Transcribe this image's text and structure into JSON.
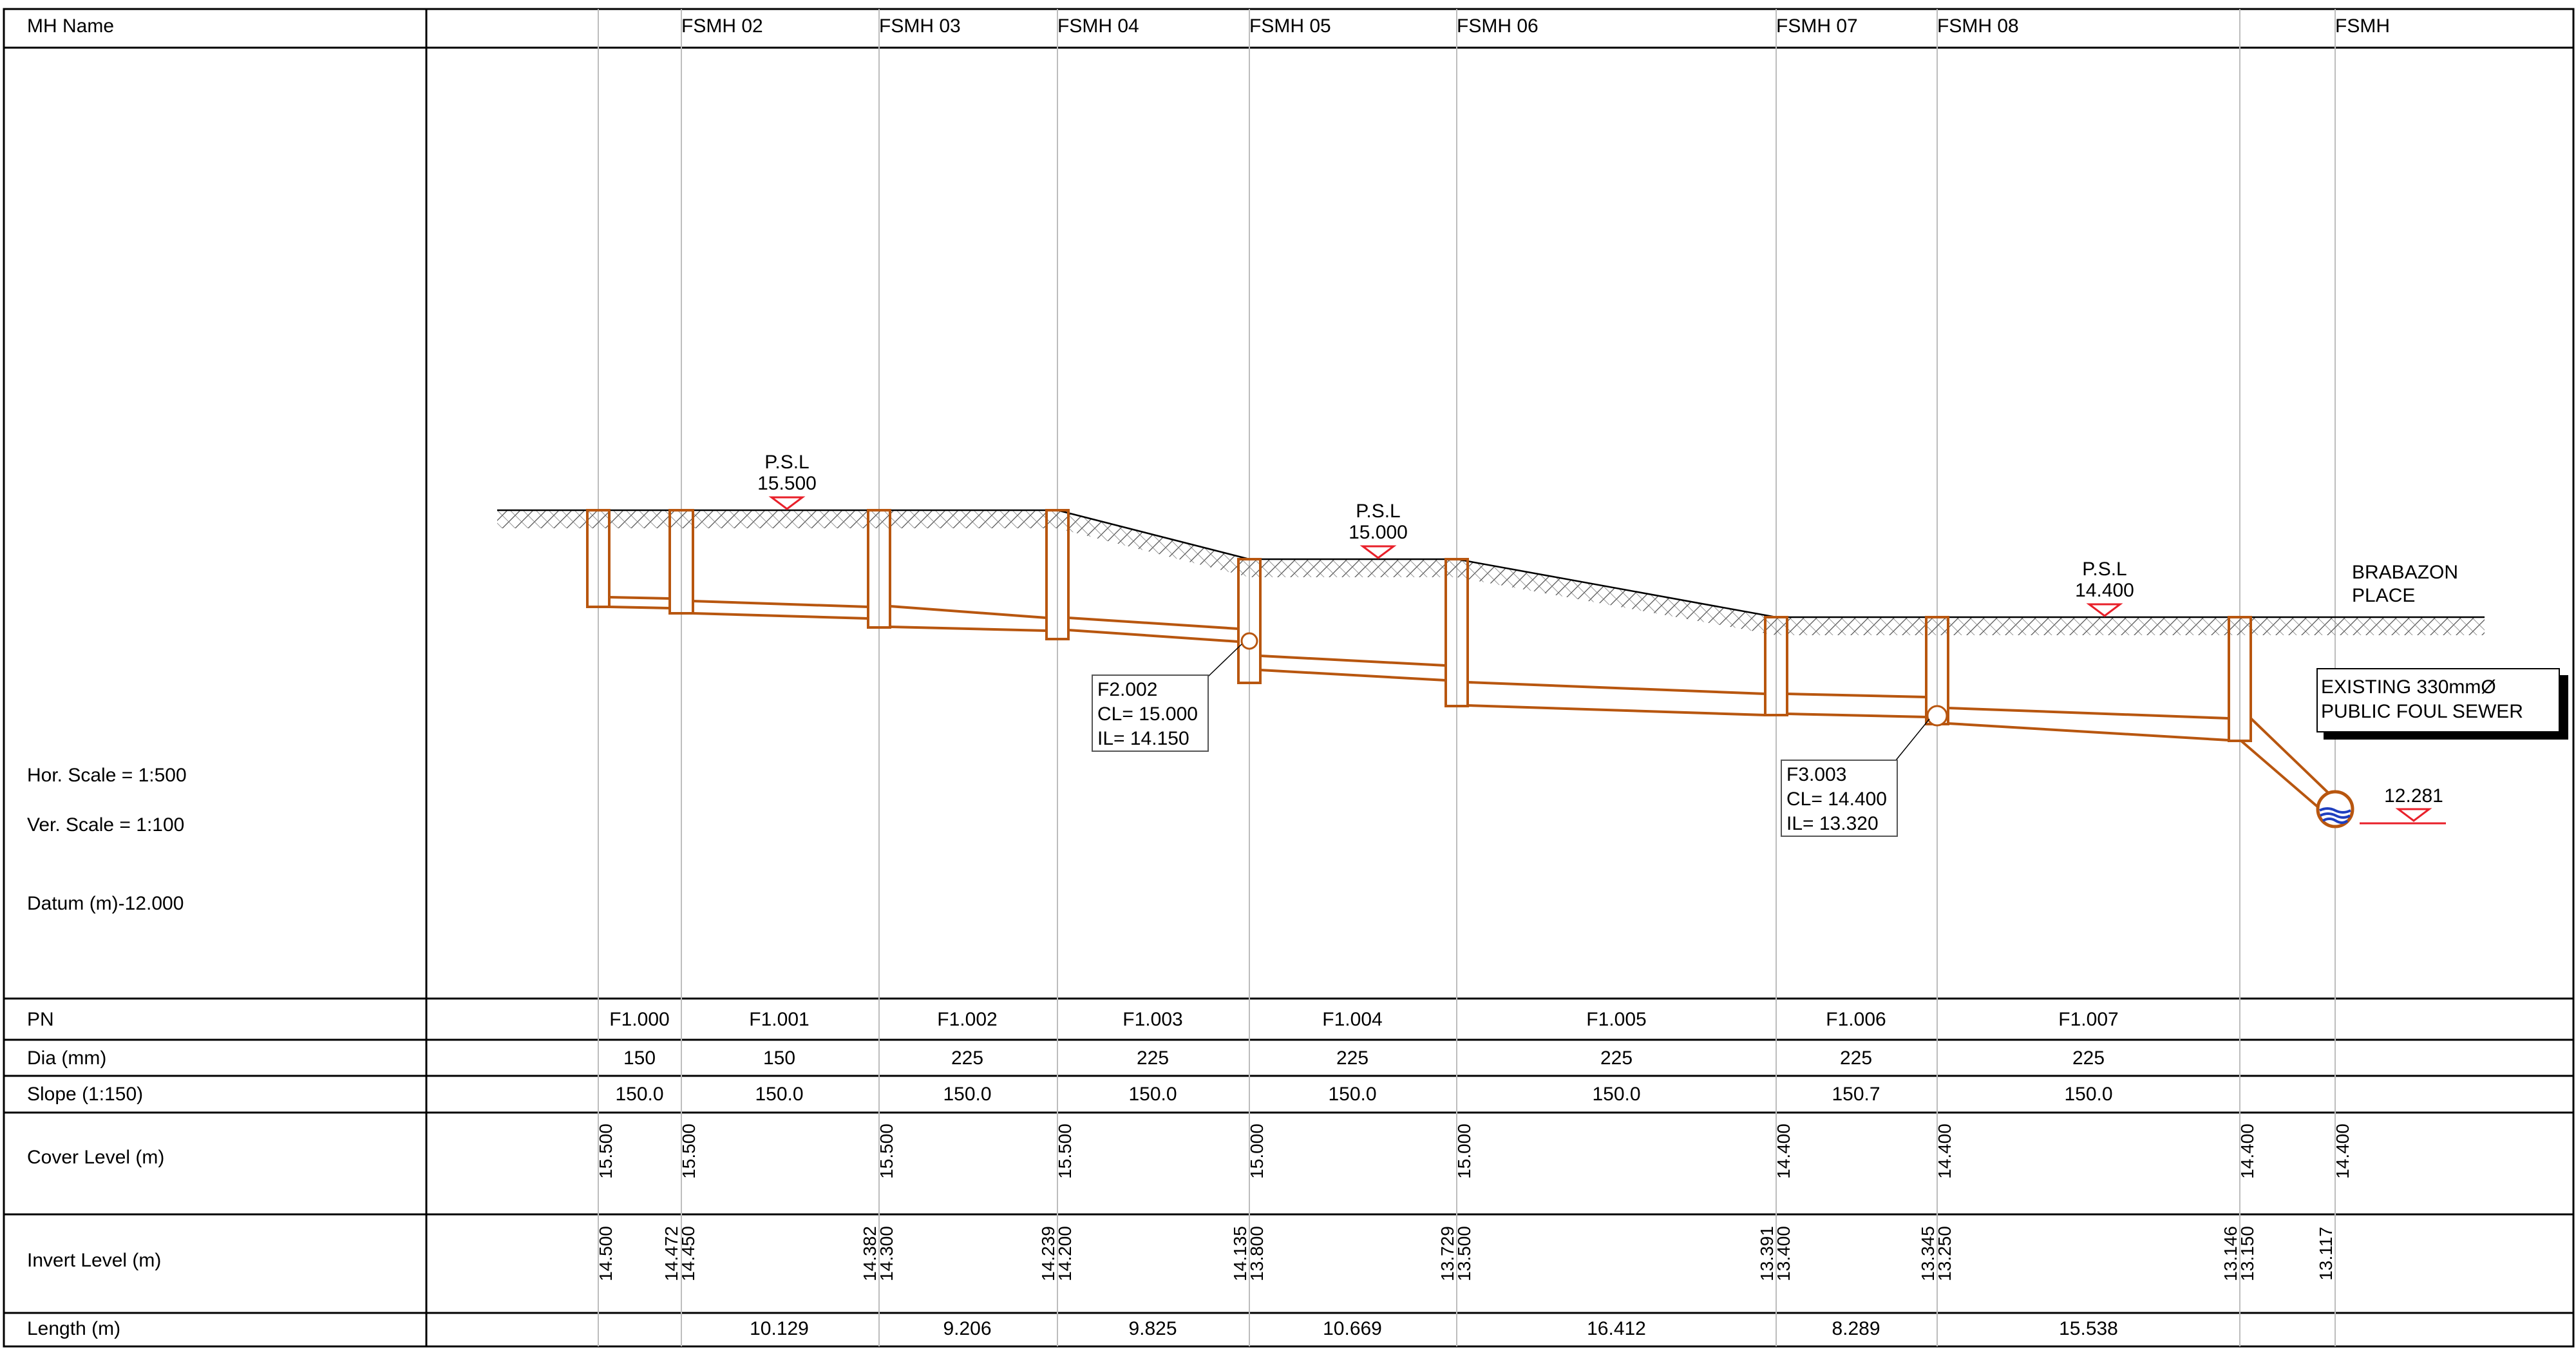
{
  "header": {
    "mh_name_label": "MH Name"
  },
  "manholes": [
    "FSMH 02",
    "FSMH 03",
    "FSMH 04",
    "FSMH 05",
    "FSMH 06",
    "FSMH 07",
    "FSMH 08",
    "FSMH"
  ],
  "scales": {
    "horizontal": "Hor. Scale = 1:500",
    "vertical": "Ver. Scale = 1:100",
    "datum": "Datum (m)-12.000"
  },
  "psl_markers": [
    {
      "label": "P.S.L",
      "value": "15.500"
    },
    {
      "label": "P.S.L",
      "value": "15.000"
    },
    {
      "label": "P.S.L",
      "value": "14.400"
    }
  ],
  "pipe_labels": [
    {
      "line1": "F2.002",
      "line2": "CL= 15.000",
      "line3": "IL= 14.150"
    },
    {
      "line1": "F3.003",
      "line2": "CL= 14.400",
      "line3": "IL= 13.320"
    }
  ],
  "street_label": {
    "line1": "BRABAZON",
    "line2": "PLACE"
  },
  "existing_sewer": {
    "line1": "EXISTING 330mmØ",
    "line2": "PUBLIC FOUL SEWER"
  },
  "outfall_level": "12.281",
  "table": {
    "row_labels": {
      "pn": "PN",
      "dia": "Dia (mm)",
      "slope": "Slope (1:150)",
      "cover": "Cover Level (m)",
      "invert": "Invert Level (m)",
      "length": "Length (m)"
    },
    "pipes": [
      {
        "pn": "F1.000",
        "dia": "150",
        "slope": "150.0",
        "length": ""
      },
      {
        "pn": "F1.001",
        "dia": "150",
        "slope": "150.0",
        "length": "10.129"
      },
      {
        "pn": "F1.002",
        "dia": "225",
        "slope": "150.0",
        "length": "9.206"
      },
      {
        "pn": "F1.003",
        "dia": "225",
        "slope": "150.0",
        "length": "9.825"
      },
      {
        "pn": "F1.004",
        "dia": "225",
        "slope": "150.0",
        "length": "10.669"
      },
      {
        "pn": "F1.005",
        "dia": "225",
        "slope": "150.0",
        "length": "16.412"
      },
      {
        "pn": "F1.006",
        "dia": "225",
        "slope": "150.7",
        "length": "8.289"
      },
      {
        "pn": "F1.007",
        "dia": "225",
        "slope": "150.0",
        "length": "15.538"
      }
    ],
    "cover_levels": [
      "15.500",
      "15.500",
      "15.500",
      "15.500",
      "15.000",
      "15.000",
      "14.400",
      "14.400",
      "14.400",
      "14.400"
    ],
    "invert_levels": [
      [
        "14.500"
      ],
      [
        "14.472",
        "14.450"
      ],
      [
        "14.382",
        "14.300"
      ],
      [
        "14.239",
        "14.200"
      ],
      [
        "14.135",
        "13.800"
      ],
      [
        "13.729",
        "13.500"
      ],
      [
        "13.391",
        "13.400"
      ],
      [
        "13.345",
        "13.250"
      ],
      [
        "13.146",
        "13.150"
      ],
      [
        "13.117"
      ]
    ]
  },
  "colors": {
    "pipe": "#b8560f",
    "grid": "#000000",
    "station_line": "#bdbdbd",
    "psl_marker": "#e8202a",
    "water": "#1f3fbf"
  }
}
